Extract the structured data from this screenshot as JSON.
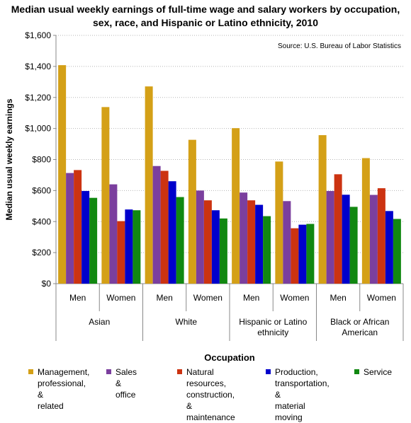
{
  "chart_data": {
    "type": "bar",
    "title_lines": [
      "Median usual weekly earnings of full-time wage and salary workers by occupation,",
      "sex, race, and Hispanic or Latino ethnicity, 2010"
    ],
    "source": "Source: U.S. Bureau of Labor Statistics",
    "ylabel": "Median usual weekly earnings",
    "xlabel": "Occupation",
    "ylim": [
      0,
      1600
    ],
    "yticks": [
      "$0",
      "$200",
      "$400",
      "$600",
      "$800",
      "$1,000",
      "$1,200",
      "$1,400",
      "$1,600"
    ],
    "grid": true,
    "legend_position": "bottom",
    "groups": [
      {
        "label": "Asian",
        "categories": [
          "Men",
          "Women"
        ]
      },
      {
        "label": "White",
        "categories": [
          "Men",
          "Women"
        ]
      },
      {
        "label": "Hispanic or Latino ethnicity",
        "categories": [
          "Men",
          "Women"
        ]
      },
      {
        "label": "Black or African American",
        "categories": [
          "Men",
          "Women"
        ]
      }
    ],
    "categories": [
      "Men",
      "Women",
      "Men",
      "Women",
      "Men",
      "Women",
      "Men",
      "Women"
    ],
    "series": [
      {
        "name": "Management, professional, & related",
        "color": "#D4A017",
        "values": [
          1408,
          1138,
          1271,
          927,
          1002,
          787,
          957,
          809
        ]
      },
      {
        "name": "Sales & office",
        "color": "#7B3F9E",
        "values": [
          713,
          640,
          758,
          600,
          587,
          532,
          597,
          572
        ]
      },
      {
        "name": "Natural resources, construction, & maintenance",
        "color": "#CC3311",
        "values": [
          732,
          403,
          727,
          537,
          537,
          357,
          705,
          615
        ]
      },
      {
        "name": "Production, transportation, & material moving",
        "color": "#0000CC",
        "values": [
          597,
          478,
          660,
          473,
          508,
          380,
          573,
          468
        ]
      },
      {
        "name": "Service",
        "color": "#118811",
        "values": [
          553,
          473,
          558,
          420,
          435,
          385,
          495,
          417
        ]
      }
    ]
  }
}
